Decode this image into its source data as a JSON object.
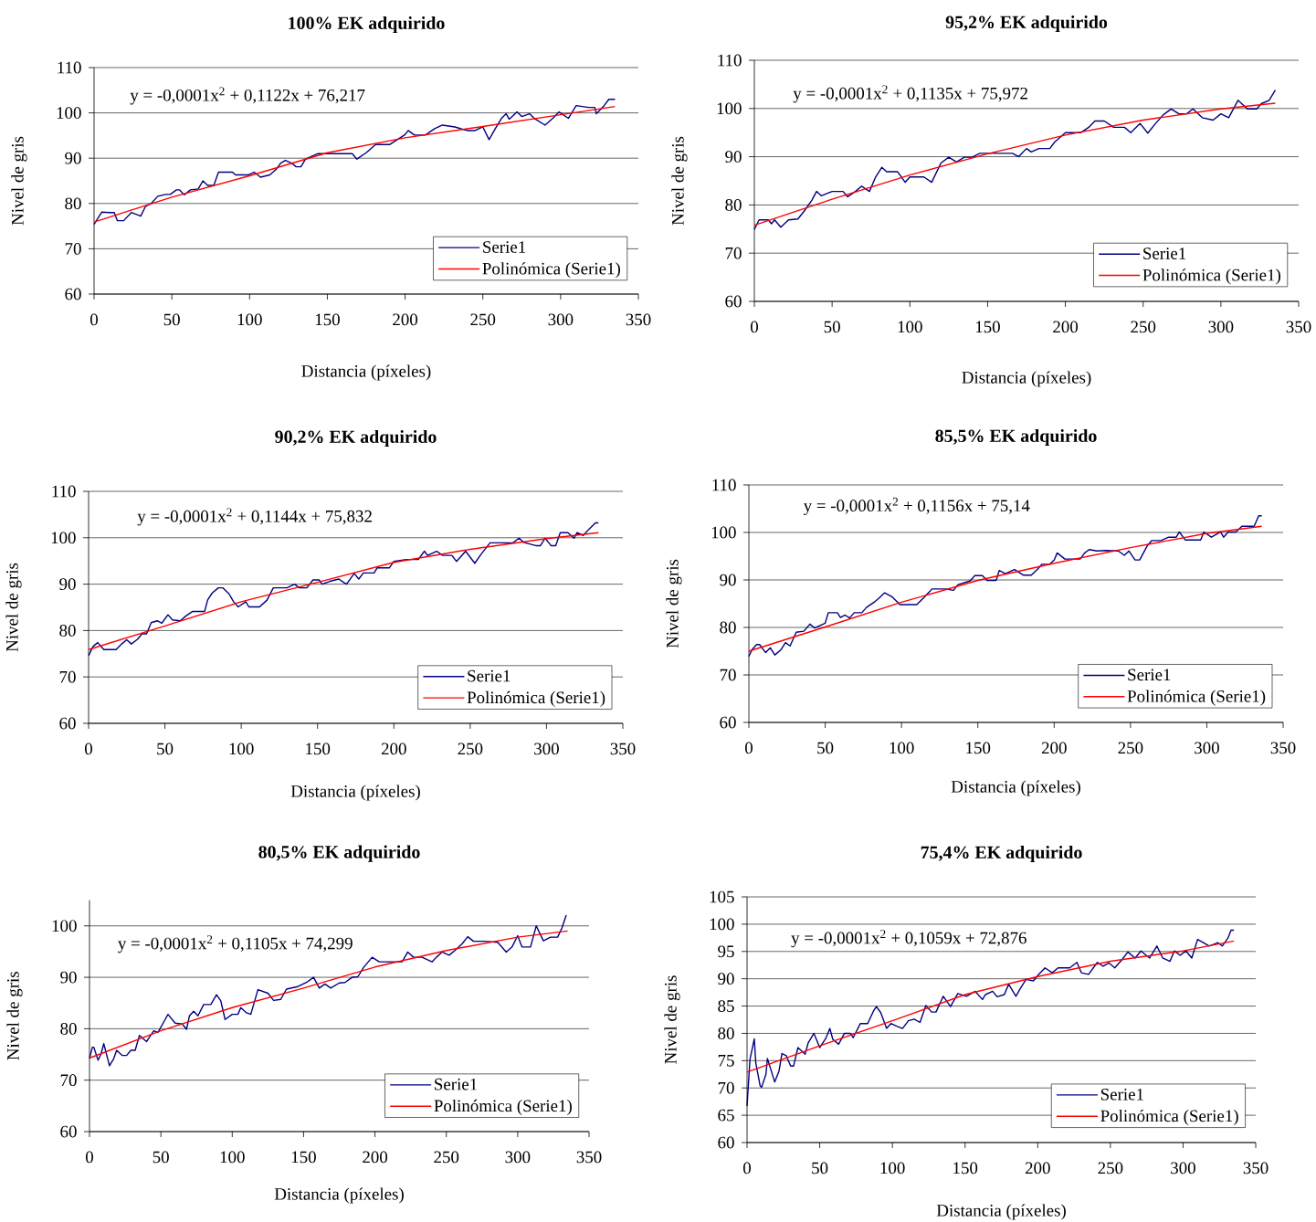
{
  "chart_data": [
    {
      "type": "line",
      "title": "100% EK adquirido",
      "xlabel": "Distancia (píxeles)",
      "ylabel": "Nivel de gris",
      "annotations": [
        "y = -0,0001x$^{2}$ + 0,1122x + 76,217"
      ],
      "xlim": [
        0,
        350
      ],
      "ylim": [
        60,
        110
      ],
      "xticks": [
        0,
        50,
        100,
        150,
        200,
        250,
        300,
        350
      ],
      "yticks": [
        60,
        70,
        80,
        90,
        100,
        110
      ],
      "grid": "y",
      "legend": "bottom right",
      "marker": "none",
      "series": [
        {
          "name": "Serie1",
          "color": "#000080",
          "x": [
            0,
            5,
            10,
            13,
            15,
            19,
            24,
            30,
            33,
            37,
            41,
            46,
            49,
            53,
            55,
            58,
            62,
            67,
            70,
            73,
            77,
            80,
            89,
            91,
            99,
            103,
            107,
            113,
            117,
            120,
            123,
            127,
            130,
            133,
            136,
            144,
            166,
            169,
            175,
            181,
            190,
            200,
            202,
            206,
            213,
            219,
            224,
            232,
            240,
            245,
            250,
            254,
            258,
            262,
            265,
            267,
            272,
            275,
            280,
            283,
            290,
            295,
            299,
            305,
            310,
            318,
            322,
            323,
            328,
            331,
            335
          ],
          "values": [
            75.4,
            78.1,
            78,
            78,
            76.2,
            76.2,
            78,
            77.2,
            79.3,
            80.1,
            81.6,
            82,
            82,
            83,
            83,
            81.9,
            83,
            83.2,
            85,
            84,
            84,
            86.9,
            86.9,
            86.3,
            86.3,
            86.9,
            85.8,
            86.3,
            87.5,
            88.9,
            89.5,
            88.9,
            88.1,
            88.1,
            89.8,
            91,
            91,
            89.8,
            91.2,
            93,
            93,
            95.2,
            96.1,
            95.1,
            95.1,
            96.5,
            97.3,
            96.9,
            96.1,
            96.1,
            96.9,
            94.1,
            96.5,
            98.8,
            99.8,
            98.6,
            100.2,
            99.2,
            99.8,
            98.8,
            97.3,
            98.8,
            100.2,
            98.8,
            101.6,
            101.2,
            101.2,
            99.8,
            101.6,
            103,
            103
          ]
        },
        {
          "name": "Polinómica (Serie1)",
          "color": "#ff0000",
          "type": "line",
          "x": [
            0,
            50,
            100,
            150,
            200,
            250,
            300,
            335
          ],
          "values": [
            75.9,
            81.4,
            86.1,
            91.2,
            94.5,
            97,
            99.6,
            101.4
          ]
        }
      ]
    },
    {
      "type": "line",
      "title": "95,2% EK adquirido",
      "xlabel": "Distancia (píxeles)",
      "ylabel": "Nivel de gris",
      "annotations": [
        "y = -0,0001x$^{2}$ + 0,1135x + 75,972"
      ],
      "xlim": [
        0,
        350
      ],
      "ylim": [
        60,
        110
      ],
      "xticks": [
        0,
        50,
        100,
        150,
        200,
        250,
        300,
        350
      ],
      "yticks": [
        60,
        70,
        80,
        90,
        100,
        110
      ],
      "grid": "y",
      "legend": "bottom right",
      "marker": "none",
      "series": [
        {
          "name": "Serie1",
          "color": "#000080",
          "x": [
            0,
            3,
            9,
            11,
            13,
            17,
            22,
            28,
            32,
            37,
            40,
            43,
            50,
            57,
            60,
            65,
            69,
            74,
            78,
            82,
            85,
            92,
            97,
            100,
            109,
            114,
            120,
            125,
            130,
            135,
            140,
            145,
            155,
            166,
            170,
            175,
            178,
            183,
            190,
            193,
            200,
            210,
            215,
            219,
            225,
            231,
            238,
            242,
            248,
            253,
            258,
            263,
            268,
            273,
            278,
            282,
            288,
            295,
            300,
            305,
            311,
            317,
            323,
            326,
            331,
            335
          ],
          "values": [
            74.9,
            76.9,
            76.9,
            76.1,
            76.9,
            75.4,
            76.9,
            77.1,
            78.7,
            81,
            82.8,
            81.9,
            82.8,
            82.8,
            81.7,
            82.8,
            83.9,
            82.8,
            85.8,
            87.8,
            86.9,
            86.9,
            84.7,
            85.8,
            85.8,
            84.7,
            88.7,
            89.9,
            88.9,
            89.9,
            89.9,
            90.7,
            90.7,
            90.7,
            90,
            91.7,
            91,
            91.7,
            91.7,
            93,
            95,
            95,
            96.1,
            97.4,
            97.4,
            96.1,
            96.1,
            95,
            96.9,
            94.9,
            96.9,
            98.7,
            99.9,
            98.9,
            98.9,
            99.9,
            98.1,
            97.6,
            98.9,
            98.1,
            101.7,
            99.9,
            99.9,
            101,
            101.7,
            103.8
          ]
        },
        {
          "name": "Polinómica (Serie1)",
          "color": "#ff0000",
          "type": "line",
          "x": [
            0,
            50,
            100,
            150,
            200,
            250,
            300,
            335
          ],
          "values": [
            75.8,
            81.2,
            86.2,
            90.6,
            94.5,
            97.6,
            99.9,
            101.1
          ]
        }
      ]
    },
    {
      "type": "line",
      "title": "90,2% EK adquirido",
      "xlabel": "Distancia (píxeles)",
      "ylabel": "Nivel de gris",
      "annotations": [
        "y = -0,0001x$^{2}$ + 0,1144x + 75,832"
      ],
      "xlim": [
        0,
        350
      ],
      "ylim": [
        60,
        110
      ],
      "xticks": [
        0,
        50,
        100,
        150,
        200,
        250,
        300,
        350
      ],
      "yticks": [
        60,
        70,
        80,
        90,
        100,
        110
      ],
      "grid": "y",
      "legend": "bottom right",
      "marker": "none",
      "series": [
        {
          "name": "Serie1",
          "color": "#000080",
          "x": [
            0,
            3,
            6,
            10,
            18,
            22,
            25,
            28,
            32,
            35,
            38,
            41,
            45,
            48,
            52,
            55,
            60,
            64,
            68,
            76,
            78,
            81,
            85,
            88,
            92,
            95,
            98,
            103,
            105,
            112,
            117,
            121,
            126,
            130,
            135,
            138,
            143,
            147,
            151,
            153,
            158,
            164,
            167,
            169,
            174,
            177,
            180,
            187,
            189,
            197,
            200,
            208,
            216,
            220,
            222,
            228,
            232,
            238,
            241,
            247,
            253,
            257,
            263,
            271,
            278,
            282,
            285,
            293,
            296,
            299,
            303,
            306,
            309,
            314,
            318,
            320,
            324,
            328,
            332,
            334
          ],
          "values": [
            74.6,
            76.6,
            77.4,
            75.9,
            75.9,
            77.2,
            78,
            77.1,
            78.1,
            79.3,
            79.3,
            81.7,
            82.1,
            81.6,
            83.4,
            82.3,
            82.1,
            83.2,
            84.1,
            84.1,
            86.6,
            88.1,
            89.2,
            89.2,
            87.9,
            86.2,
            85.1,
            86.2,
            85.1,
            85.1,
            86.6,
            89.2,
            89.2,
            89.2,
            90,
            89.2,
            89.2,
            90.9,
            90.9,
            90,
            90.6,
            91.1,
            90.4,
            90,
            92.3,
            91.1,
            92.4,
            92.4,
            93.5,
            93.5,
            94.9,
            95.3,
            95.3,
            97.1,
            96.2,
            97.1,
            96.2,
            96.2,
            94.9,
            97.1,
            94.5,
            96.4,
            98.9,
            98.9,
            98.9,
            99.9,
            99,
            98.3,
            98.3,
            99.9,
            98.3,
            98.3,
            101.1,
            101.1,
            99.9,
            101.1,
            100.5,
            101.9,
            103.2,
            103.2
          ]
        },
        {
          "name": "Polinómica (Serie1)",
          "color": "#ff0000",
          "type": "line",
          "x": [
            0,
            50,
            100,
            150,
            200,
            250,
            300,
            334
          ],
          "values": [
            75.9,
            81,
            86.2,
            90.4,
            94.7,
            97.5,
            99.8,
            101.1
          ]
        }
      ]
    },
    {
      "type": "line",
      "title": "85,5% EK adquirido",
      "xlabel": "Distancia (píxeles)",
      "ylabel": "Nivel de gris",
      "annotations": [
        "y = -0,0001x$^{2}$ + 0,1156x + 75,14"
      ],
      "xlim": [
        0,
        350
      ],
      "ylim": [
        60,
        110
      ],
      "xticks": [
        0,
        50,
        100,
        150,
        200,
        250,
        300,
        350
      ],
      "yticks": [
        60,
        70,
        80,
        90,
        100,
        110
      ],
      "grid": "y",
      "legend": "bottom right",
      "marker": "none",
      "series": [
        {
          "name": "Serie1",
          "color": "#000080",
          "x": [
            0,
            2,
            5,
            7,
            11,
            14,
            17,
            21,
            24,
            27,
            31,
            36,
            40,
            43,
            50,
            52,
            58,
            60,
            63,
            66,
            69,
            74,
            77,
            82,
            85,
            89,
            94,
            99,
            103,
            110,
            115,
            120,
            125,
            129,
            134,
            137,
            145,
            148,
            153,
            156,
            162,
            164,
            168,
            174,
            180,
            185,
            189,
            192,
            197,
            200,
            202,
            207,
            213,
            217,
            220,
            223,
            228,
            234,
            242,
            246,
            249,
            253,
            256,
            261,
            264,
            270,
            275,
            280,
            282,
            286,
            289,
            296,
            298,
            303,
            309,
            311,
            314,
            319,
            323,
            331,
            334,
            336
          ],
          "values": [
            73.9,
            75.3,
            76.4,
            76.4,
            74.7,
            75.7,
            74.2,
            75.3,
            76.8,
            76.1,
            79,
            79.2,
            80.7,
            79.9,
            80.9,
            83.1,
            83.1,
            82.1,
            82.6,
            82,
            83.1,
            83.1,
            84.2,
            85.3,
            86.1,
            87.3,
            86.4,
            84.8,
            84.8,
            84.8,
            86.4,
            88.1,
            88.1,
            88.1,
            87.8,
            89,
            89.8,
            90.9,
            90.9,
            89.9,
            89.9,
            92,
            91.3,
            92.2,
            91,
            91,
            92.2,
            93.3,
            93.3,
            94.2,
            95.7,
            94.4,
            94.4,
            94.4,
            95.7,
            96.4,
            96.1,
            96.2,
            96.1,
            95.2,
            96.1,
            94.2,
            94.2,
            97.2,
            98.3,
            98.3,
            99,
            99,
            100.1,
            98.4,
            98.4,
            98.4,
            100.1,
            99,
            100.1,
            99,
            100.1,
            100.1,
            101.3,
            101.3,
            103.5,
            103.5
          ]
        },
        {
          "name": "Polinómica (Serie1)",
          "color": "#ff0000",
          "type": "line",
          "x": [
            0,
            50,
            100,
            150,
            200,
            250,
            300,
            336
          ],
          "values": [
            75,
            80.1,
            85.3,
            89.9,
            93.5,
            96.8,
            99.8,
            101.3
          ]
        }
      ]
    },
    {
      "type": "line",
      "title": "80,5% EK adquirido",
      "xlabel": "Distancia (píxeles)",
      "ylabel": "Nivel de gris",
      "annotations": [
        "y = -0,0001x$^{2}$ + 0,1105x + 74,299"
      ],
      "xlim": [
        0,
        350
      ],
      "ylim": [
        60,
        105
      ],
      "xticks": [
        0,
        50,
        100,
        150,
        200,
        250,
        300,
        350
      ],
      "yticks": [
        60,
        70,
        80,
        90,
        100
      ],
      "grid": "y",
      "legend": "bottom right",
      "marker": "none",
      "series": [
        {
          "name": "Serie1",
          "color": "#000080",
          "x": [
            0,
            2,
            3,
            6,
            8,
            10,
            14,
            17,
            19,
            23,
            26,
            29,
            32,
            35,
            40,
            45,
            48,
            53,
            55,
            60,
            65,
            68,
            70,
            73,
            76,
            80,
            85,
            89,
            92,
            95,
            100,
            104,
            106,
            110,
            113,
            118,
            125,
            129,
            134,
            138,
            146,
            152,
            157,
            161,
            165,
            169,
            175,
            179,
            184,
            188,
            192,
            198,
            203,
            209,
            219,
            223,
            227,
            233,
            240,
            243,
            247,
            252,
            256,
            261,
            265,
            269,
            277,
            286,
            292,
            296,
            300,
            303,
            309,
            313,
            318,
            323,
            328,
            331,
            334
          ],
          "values": [
            74.2,
            76.4,
            76.4,
            73.9,
            75,
            77.1,
            72.8,
            74.2,
            75.8,
            74.8,
            74.8,
            75.8,
            75.8,
            78.7,
            77.5,
            79.6,
            79.3,
            81.8,
            82.8,
            81.1,
            80.9,
            79.9,
            82.5,
            83.4,
            82.5,
            84.7,
            84.7,
            86.6,
            85.4,
            81.8,
            82.8,
            82.8,
            84.1,
            83.1,
            82.8,
            87.6,
            86.9,
            85.5,
            85.7,
            87.7,
            88.2,
            89,
            90,
            87.9,
            88.7,
            87.9,
            88.9,
            89,
            90,
            90.1,
            91.9,
            93.9,
            93,
            93,
            93,
            94.9,
            93.9,
            93.9,
            93,
            93.9,
            94.9,
            94.3,
            95.2,
            96.5,
            97.9,
            97,
            97,
            96.8,
            94.9,
            95.9,
            98.1,
            95.9,
            95.9,
            100,
            97.1,
            97.8,
            97.8,
            99.6,
            102.1
          ]
        },
        {
          "name": "Polinómica (Serie1)",
          "color": "#ff0000",
          "type": "line",
          "x": [
            0,
            50,
            100,
            150,
            200,
            250,
            300,
            335
          ],
          "values": [
            74.3,
            79.6,
            84.1,
            87.9,
            92,
            95.2,
            97.8,
            99
          ]
        }
      ]
    },
    {
      "type": "line",
      "title": "75,4% EK adquirido",
      "xlabel": "Distancia (píxeles)",
      "ylabel": "Nivel de gris",
      "annotations": [
        "y = -0,0001x$^{2}$ + 0,1059x + 72,876"
      ],
      "xlim": [
        0,
        350
      ],
      "ylim": [
        60,
        105
      ],
      "xticks": [
        0,
        50,
        100,
        150,
        200,
        250,
        300,
        350
      ],
      "yticks": [
        60,
        65,
        70,
        75,
        80,
        85,
        90,
        95,
        100,
        105
      ],
      "grid": "y",
      "legend": "bottom right",
      "marker": "none",
      "series": [
        {
          "name": "Serie1",
          "color": "#000080",
          "x": [
            0,
            2,
            5,
            6,
            9,
            10,
            13,
            14,
            16,
            19,
            22,
            24,
            27,
            30,
            32,
            35,
            40,
            42,
            46,
            50,
            54,
            57,
            59,
            63,
            67,
            71,
            73,
            78,
            83,
            87,
            89,
            92,
            96,
            99,
            103,
            107,
            111,
            115,
            119,
            123,
            127,
            130,
            135,
            140,
            145,
            151,
            157,
            162,
            164,
            169,
            172,
            177,
            180,
            185,
            188,
            192,
            197,
            200,
            205,
            210,
            214,
            222,
            227,
            230,
            235,
            241,
            245,
            249,
            253,
            258,
            262,
            267,
            271,
            277,
            282,
            286,
            291,
            294,
            298,
            302,
            306,
            310,
            314,
            318,
            324,
            327,
            331,
            333,
            335
          ],
          "values": [
            66.7,
            75.2,
            79,
            74.6,
            70.4,
            70.1,
            72.5,
            75.4,
            73.7,
            71.1,
            73.1,
            76.3,
            75.9,
            74,
            74,
            77.4,
            76.2,
            78.2,
            80,
            77.4,
            79,
            80.9,
            78.9,
            78,
            80,
            80,
            79.2,
            81.8,
            81.8,
            84.1,
            84.9,
            83.8,
            80.9,
            81.8,
            81.3,
            80.9,
            82.3,
            82.6,
            82,
            85.1,
            83.9,
            83.9,
            86.8,
            84.9,
            87.3,
            86.8,
            87.7,
            86.2,
            87.1,
            87.7,
            86.7,
            87.1,
            89,
            86.8,
            88.2,
            89.9,
            89.6,
            90.6,
            92,
            91.1,
            92,
            92,
            93,
            91.1,
            90.8,
            93,
            92.3,
            92.9,
            92,
            93.5,
            94.9,
            93.8,
            95.1,
            93.8,
            96,
            93.8,
            93.2,
            95.1,
            94.3,
            95.1,
            93.8,
            97.2,
            96.6,
            96,
            96.6,
            96,
            97.5,
            98.9,
            98.9
          ]
        },
        {
          "name": "Polinómica (Serie1)",
          "color": "#ff0000",
          "type": "line",
          "x": [
            0,
            50,
            100,
            150,
            200,
            250,
            300,
            335
          ],
          "values": [
            72.9,
            77.7,
            82.3,
            87.1,
            90.4,
            93.2,
            95.1,
            96.9
          ]
        }
      ]
    }
  ]
}
